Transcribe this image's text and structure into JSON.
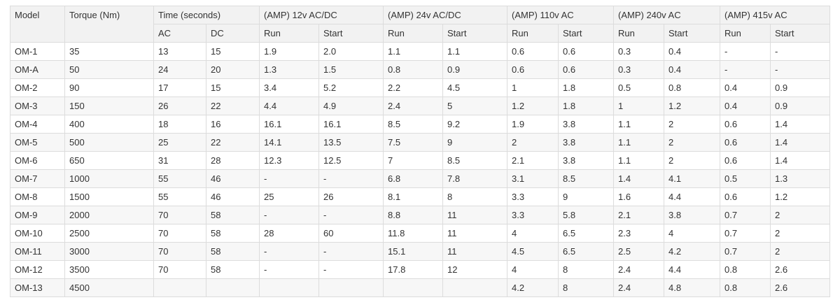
{
  "table": {
    "header": [
      "Model",
      "Torque (Nm)",
      "Time (seconds)",
      "(AMP) 12v AC/DC",
      "(AMP) 24v AC/DC",
      "(AMP) 110v AC",
      "(AMP) 240v AC",
      "(AMP) 415v AC"
    ],
    "subheader": [
      "AC",
      "DC",
      "Run",
      "Start",
      "Run",
      "Start",
      "Run",
      "Start",
      "Run",
      "Start",
      "Run",
      "Start"
    ],
    "rows": [
      [
        "OM-1",
        "35",
        "13",
        "15",
        "1.9",
        "2.0",
        "1.1",
        "1.1",
        "0.6",
        "0.6",
        "0.3",
        "0.4",
        "-",
        "-"
      ],
      [
        "OM-A",
        "50",
        "24",
        "20",
        "1.3",
        "1.5",
        "0.8",
        "0.9",
        "0.6",
        "0.6",
        "0.3",
        "0.4",
        "-",
        "-"
      ],
      [
        "OM-2",
        "90",
        "17",
        "15",
        "3.4",
        "5.2",
        "2.2",
        "4.5",
        "1",
        "1.8",
        "0.5",
        "0.8",
        "0.4",
        "0.9"
      ],
      [
        "OM-3",
        "150",
        "26",
        "22",
        "4.4",
        "4.9",
        "2.4",
        "5",
        "1.2",
        "1.8",
        "1",
        "1.2",
        "0.4",
        "0.9"
      ],
      [
        "OM-4",
        "400",
        "18",
        "16",
        "16.1",
        "16.1",
        "8.5",
        "9.2",
        "1.9",
        "3.8",
        "1.1",
        "2",
        "0.6",
        "1.4"
      ],
      [
        "OM-5",
        "500",
        "25",
        "22",
        "14.1",
        "13.5",
        "7.5",
        "9",
        "2",
        "3.8",
        "1.1",
        "2",
        "0.6",
        "1.4"
      ],
      [
        "OM-6",
        "650",
        "31",
        "28",
        "12.3",
        "12.5",
        "7",
        "8.5",
        "2.1",
        "3.8",
        "1.1",
        "2",
        "0.6",
        "1.4"
      ],
      [
        "OM-7",
        "1000",
        "55",
        "46",
        "-",
        "-",
        "6.8",
        "7.8",
        "3.1",
        "8.5",
        "1.4",
        "4.1",
        "0.5",
        "1.3"
      ],
      [
        "OM-8",
        "1500",
        "55",
        "46",
        "25",
        "26",
        "8.1",
        "8",
        "3.3",
        "9",
        "1.6",
        "4.4",
        "0.6",
        "1.2"
      ],
      [
        "OM-9",
        "2000",
        "70",
        "58",
        "-",
        "-",
        "8.8",
        "11",
        "3.3",
        "5.8",
        "2.1",
        "3.8",
        "0.7",
        "2"
      ],
      [
        "OM-10",
        "2500",
        "70",
        "58",
        "28",
        "60",
        "11.8",
        "11",
        "4",
        "6.5",
        "2.3",
        "4",
        "0.7",
        "2"
      ],
      [
        "OM-11",
        "3000",
        "70",
        "58",
        "-",
        "-",
        "15.1",
        "11",
        "4.5",
        "6.5",
        "2.5",
        "4.2",
        "0.7",
        "2"
      ],
      [
        "OM-12",
        "3500",
        "70",
        "58",
        "-",
        "-",
        "17.8",
        "12",
        "4",
        "8",
        "2.4",
        "4.4",
        "0.8",
        "2.6"
      ],
      [
        "OM-13",
        "4500",
        null,
        null,
        null,
        null,
        null,
        null,
        "4.2",
        "8",
        "2.4",
        "4.8",
        "0.8",
        "2.6"
      ]
    ]
  }
}
